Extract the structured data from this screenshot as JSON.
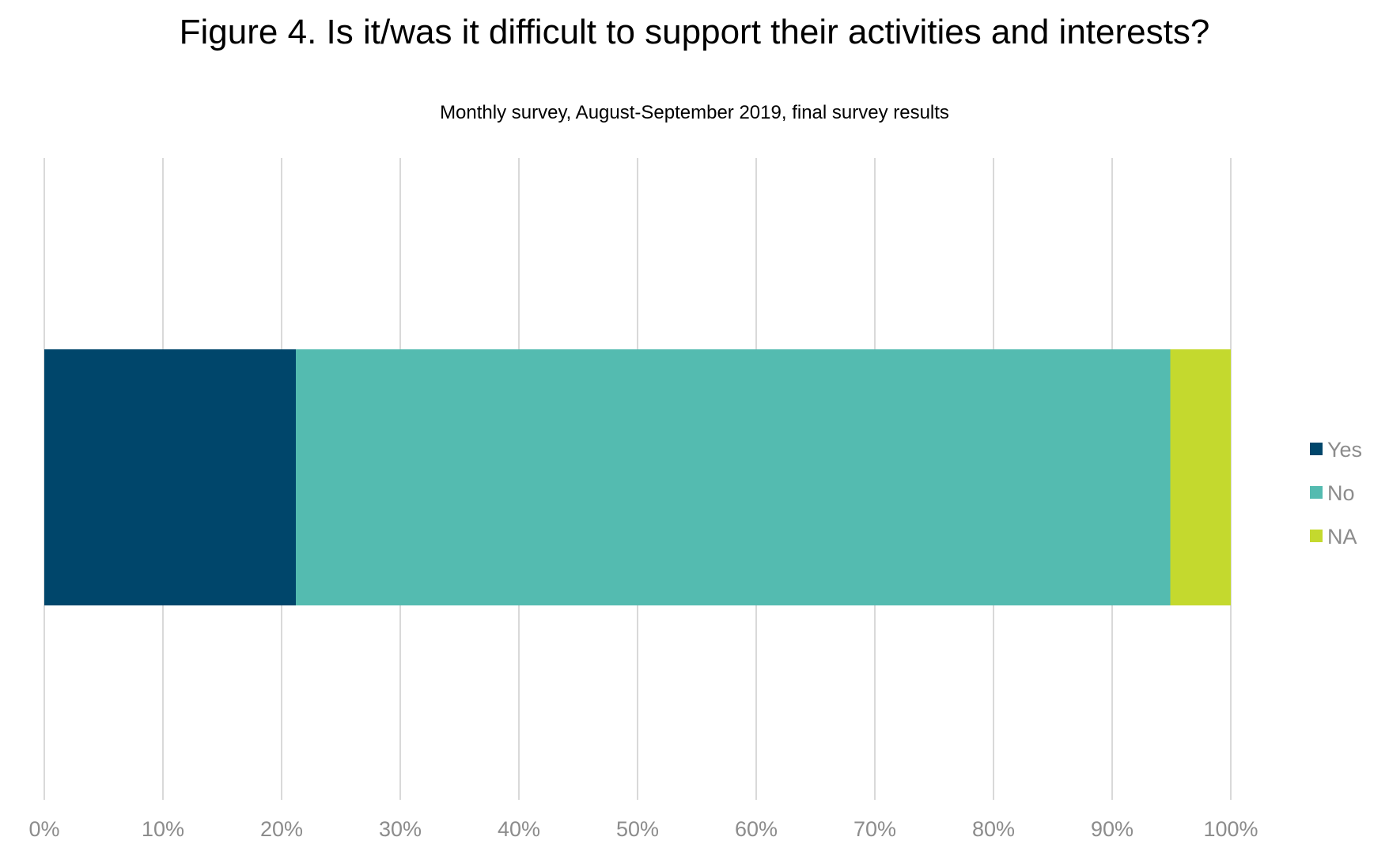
{
  "chart_data": {
    "type": "bar",
    "orientation": "horizontal",
    "stacked": true,
    "title": "Figure 4. Is it/was it difficult to support their activities and interests?",
    "subtitle": "Monthly survey, August-September 2019, final survey results",
    "xlim": [
      0,
      100
    ],
    "x_ticks": [
      "0%",
      "10%",
      "20%",
      "30%",
      "40%",
      "50%",
      "60%",
      "70%",
      "80%",
      "90%",
      "100%"
    ],
    "grid": true,
    "legend_position": "right",
    "series": [
      {
        "name": "Yes",
        "values": [
          21.2
        ],
        "color": "#00466b"
      },
      {
        "name": "No",
        "values": [
          73.7
        ],
        "color": "#54bbb0"
      },
      {
        "name": "NA",
        "values": [
          5.1
        ],
        "color": "#c4d92e"
      }
    ]
  }
}
